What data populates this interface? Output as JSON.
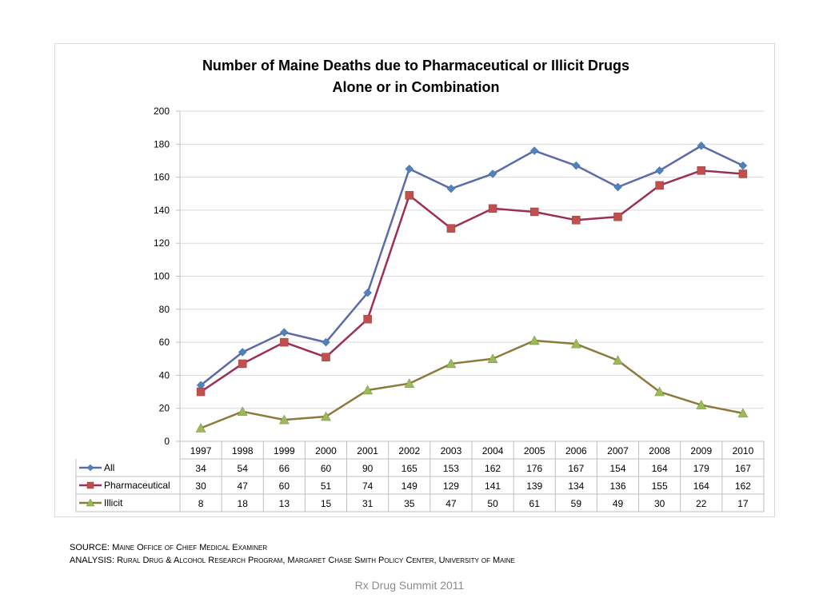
{
  "chart_data": {
    "type": "line",
    "title": "Number of Maine Deaths due to Pharmaceutical or Illicit Drugs",
    "subtitle": "Alone or in Combination",
    "xlabel": "",
    "ylabel": "",
    "ylim": [
      0,
      200
    ],
    "yticks": [
      0,
      20,
      40,
      60,
      80,
      100,
      120,
      140,
      160,
      180,
      200
    ],
    "grid": true,
    "legend": "data-table-left",
    "categories": [
      "1997",
      "1998",
      "1999",
      "2000",
      "2001",
      "2002",
      "2003",
      "2004",
      "2005",
      "2006",
      "2007",
      "2008",
      "2009",
      "2010"
    ],
    "series": [
      {
        "name": "All",
        "color": "#5B6BA8",
        "marker_color": "#4F81BD",
        "marker": "diamond",
        "values": [
          34,
          54,
          66,
          60,
          90,
          165,
          153,
          162,
          176,
          167,
          154,
          164,
          179,
          167
        ]
      },
      {
        "name": "Pharmaceutical",
        "color": "#9B2F5A",
        "marker_color": "#C0504D",
        "marker": "square",
        "values": [
          30,
          47,
          60,
          51,
          74,
          149,
          129,
          141,
          139,
          134,
          136,
          155,
          164,
          162
        ]
      },
      {
        "name": "Illicit",
        "color": "#8C7A3A",
        "marker_color": "#9BBB59",
        "marker": "triangle",
        "values": [
          8,
          18,
          13,
          15,
          31,
          35,
          47,
          50,
          61,
          59,
          49,
          30,
          22,
          17
        ]
      }
    ]
  },
  "source": {
    "source_label": "SOURCE: ",
    "source_text": "Maine Office of Chief Medical Examiner",
    "analysis_label": "ANALYSIS: ",
    "analysis_text": "Rural Drug & Alcohol Research Program, Margaret Chase Smith Policy Center, University of Maine"
  },
  "footer": "Rx Drug Summit 2011"
}
